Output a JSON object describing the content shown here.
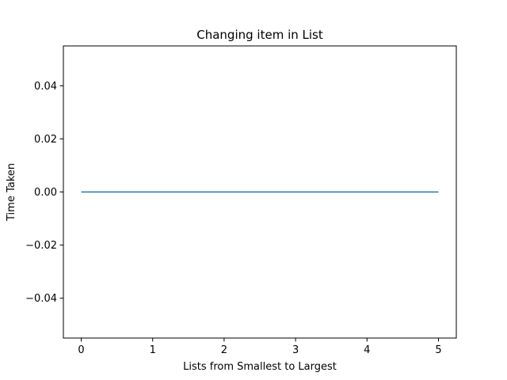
{
  "chart_data": {
    "type": "line",
    "title": "Changing item in List",
    "xlabel": "Lists from Smallest to Largest",
    "ylabel": "Time Taken",
    "xlim": [
      -0.25,
      5.25
    ],
    "ylim": [
      -0.055,
      0.055
    ],
    "xticks": [
      0,
      1,
      2,
      3,
      4,
      5
    ],
    "yticks": [
      -0.04,
      -0.02,
      0.0,
      0.02,
      0.04
    ],
    "xtick_labels": [
      "0",
      "1",
      "2",
      "3",
      "4",
      "5"
    ],
    "ytick_labels": [
      "−0.04",
      "−0.02",
      "0.00",
      "0.02",
      "0.04"
    ],
    "grid": false,
    "series": [
      {
        "x": [
          0,
          1,
          2,
          3,
          4,
          5
        ],
        "values": [
          0,
          0,
          0,
          0,
          0,
          0
        ],
        "color": "#1f77b4"
      }
    ]
  }
}
